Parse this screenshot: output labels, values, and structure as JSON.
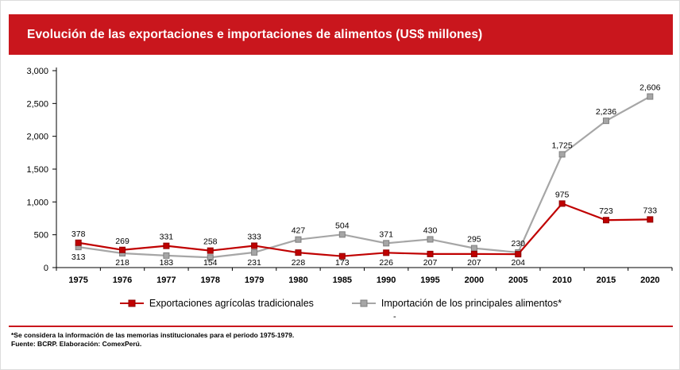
{
  "header": {
    "title": "Evolución de las exportaciones e importaciones de alimentos (US$ millones)"
  },
  "colors": {
    "accent_red": "#C9161D",
    "series_exports_red": "#C00000",
    "series_imports_gray": "#A6A6A6"
  },
  "chart_data": {
    "type": "line",
    "title": "Evolución de las exportaciones e importaciones de alimentos (US$ millones)",
    "categories": [
      "1975",
      "1976",
      "1977",
      "1978",
      "1979",
      "1980",
      "1985",
      "1990",
      "1995",
      "2000",
      "2005",
      "2010",
      "2015",
      "2020"
    ],
    "series": [
      {
        "name": "Exportaciones agrícolas tradicionales",
        "color": "#C00000",
        "edge": "#8E0000",
        "values": [
          378,
          269,
          331,
          258,
          333,
          228,
          173,
          226,
          207,
          207,
          204,
          975,
          723,
          733
        ],
        "label_pos": [
          "above",
          "above",
          "above",
          "above",
          "above",
          "below",
          "below",
          "below",
          "below",
          "below",
          "below",
          "above",
          "above",
          "above"
        ]
      },
      {
        "name": "Importación de los principales alimentos*",
        "color": "#A6A6A6",
        "edge": "#7F7F7F",
        "values": [
          313,
          218,
          183,
          154,
          231,
          427,
          504,
          371,
          430,
          295,
          230,
          1725,
          2236,
          2606
        ],
        "label_pos": [
          "below",
          "below",
          "below",
          "below",
          "below",
          "above",
          "above",
          "above",
          "above",
          "above",
          "above",
          "above",
          "above",
          "above"
        ]
      }
    ],
    "xlabel": "",
    "ylabel": "",
    "ylim": [
      0,
      3000
    ],
    "ytick_step": 500,
    "grid": false,
    "legend_position": "bottom",
    "data_labels": true
  },
  "misc": {
    "dash": "-"
  },
  "footer": {
    "note1": "*Se considera la información de las memorias institucionales para el periodo 1975-1979.",
    "note2": "Fuente: BCRP. Elaboración: ComexPerú."
  }
}
